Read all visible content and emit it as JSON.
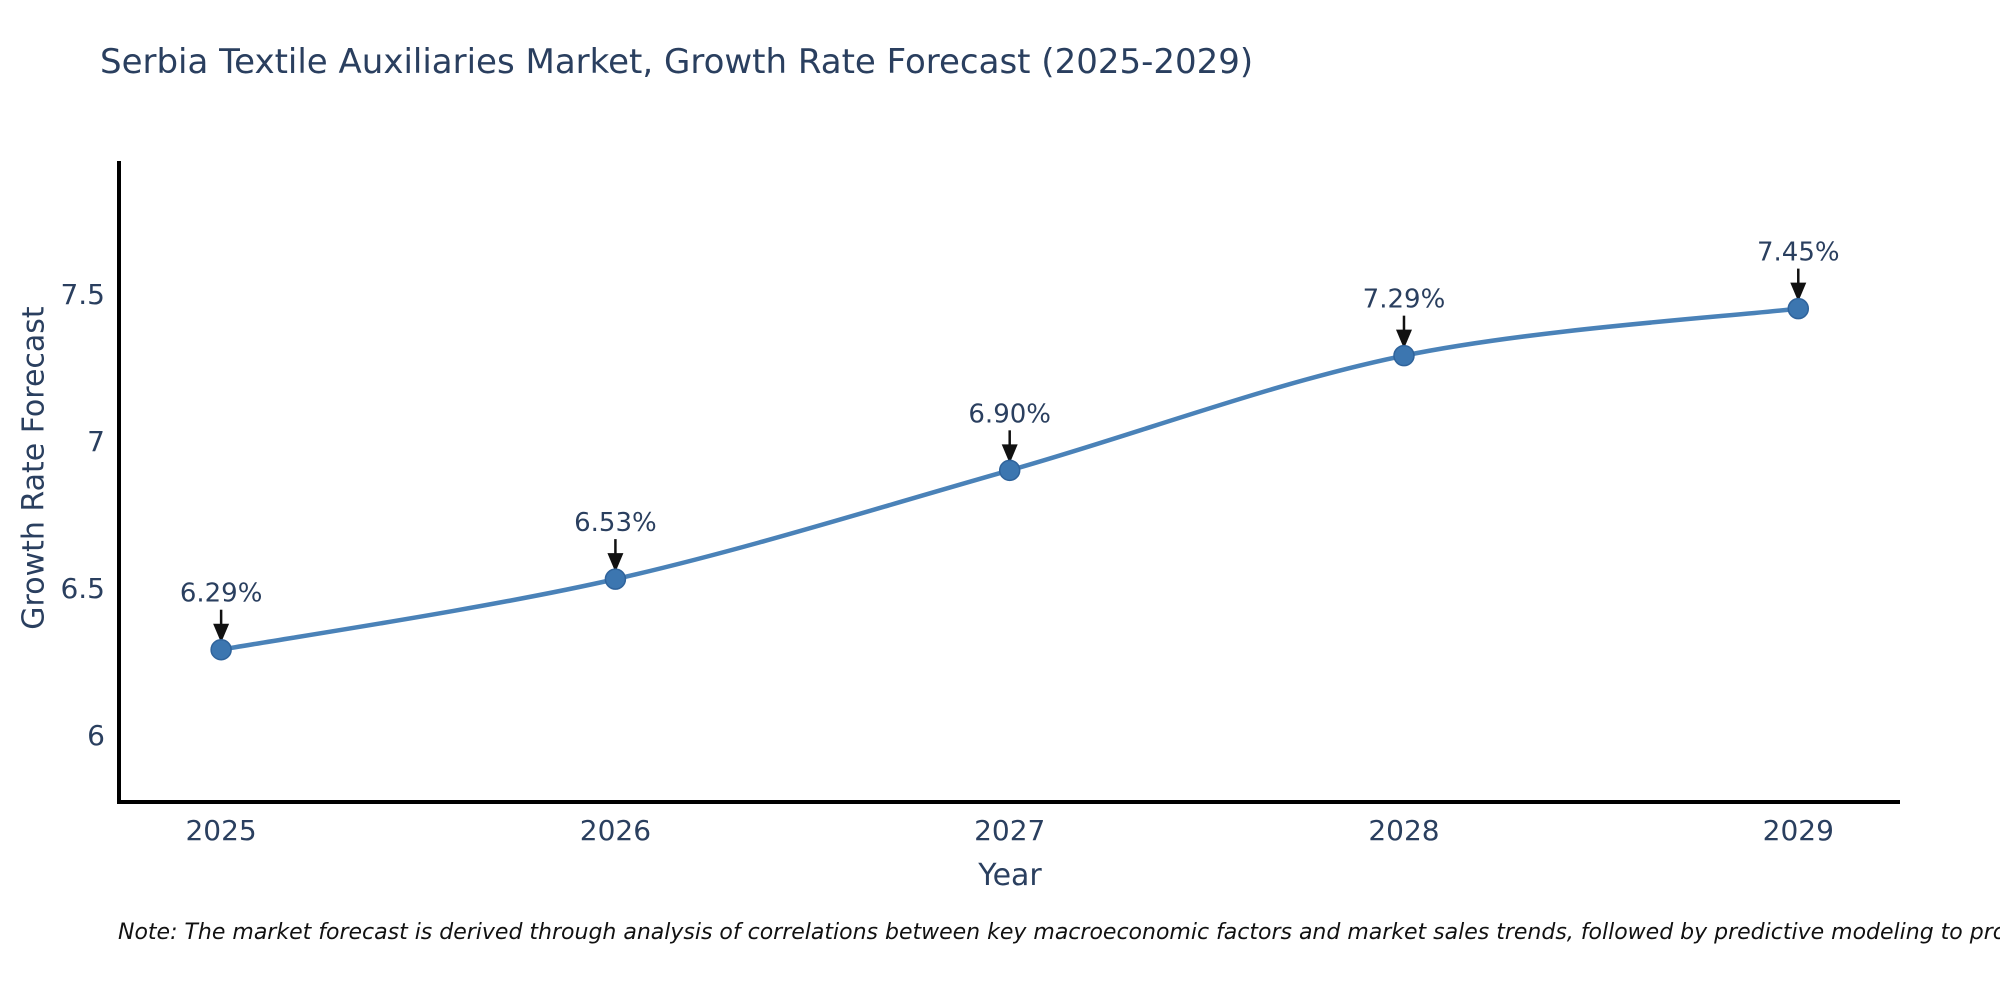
{
  "chart_data": {
    "type": "line",
    "title": "Serbia Textile Auxiliaries Market, Growth Rate Forecast (2025-2029)",
    "xlabel": "Year",
    "ylabel": "Growth Rate Forecast",
    "x": [
      2025,
      2026,
      2027,
      2028,
      2029
    ],
    "series": [
      {
        "name": "Growth Rate Forecast",
        "values": [
          6.29,
          6.53,
          6.9,
          7.29,
          7.45
        ],
        "point_labels": [
          "6.29%",
          "6.53%",
          "6.90%",
          "7.29%",
          "7.45%"
        ]
      }
    ],
    "xtick_labels": [
      "2025",
      "2026",
      "2027",
      "2028",
      "2029"
    ],
    "ytick_values": [
      6,
      6.5,
      7,
      7.5
    ],
    "ytick_labels": [
      "6",
      "6.5",
      "7",
      "7.5"
    ],
    "xlim": [
      2024.741,
      2029.258
    ],
    "ylim": [
      5.772,
      7.952
    ],
    "grid": false,
    "legend": "none",
    "line_shape": "spline",
    "colors": {
      "line": "#4a82b8",
      "marker_fill": "#3c76b0",
      "marker_edge": "#2f639b",
      "axis_line": "#000000",
      "tick_text": "#2a3f5f",
      "title_text": "#2a3f5f",
      "annotation_text": "#2a3f5f",
      "annotation_arrow": "#111111",
      "background": "#ffffff"
    }
  },
  "note": {
    "text": "Note: The market forecast is derived through analysis of correlations between key macroeconomic factors and market sales trends, followed by predictive modeling to project future sales"
  }
}
